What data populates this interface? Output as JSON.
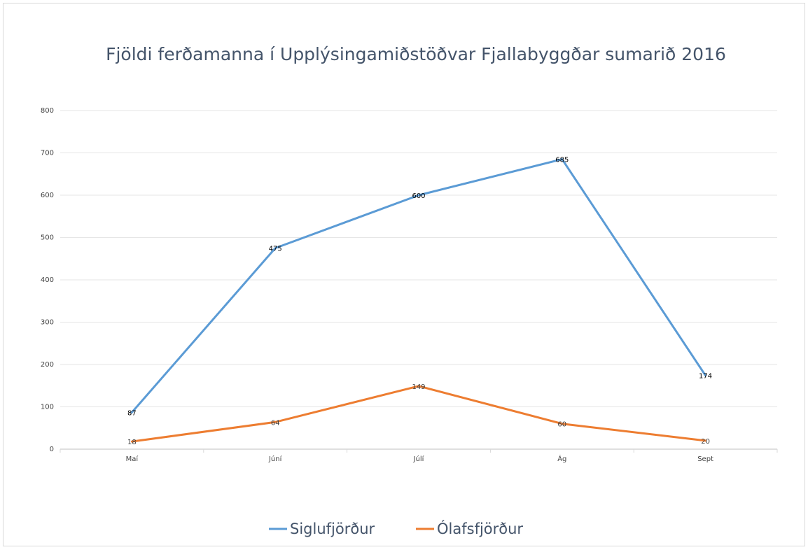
{
  "chart_data": {
    "type": "line",
    "title": "Fjöldi ferðamanna í Upplýsingamiðstöðvar Fjallabyggðar sumarið 2016",
    "categories": [
      "Maí",
      "Júní",
      "Júlí",
      "Ág",
      "Sept"
    ],
    "series": [
      {
        "name": "Siglufjörður",
        "color": "#5b9bd5",
        "values": [
          87,
          475,
          600,
          685,
          174
        ]
      },
      {
        "name": "Ólafsfjörður",
        "color": "#ed7d31",
        "values": [
          18,
          64,
          149,
          60,
          20
        ]
      }
    ],
    "ylim": [
      0,
      800
    ],
    "yticks": [
      0,
      100,
      200,
      300,
      400,
      500,
      600,
      700,
      800
    ],
    "grid": true,
    "legend": "bottom"
  }
}
